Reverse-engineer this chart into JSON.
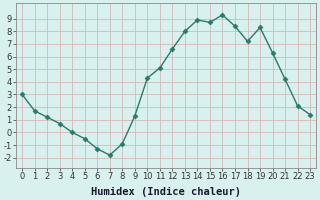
{
  "x": [
    0,
    1,
    2,
    3,
    4,
    5,
    6,
    7,
    8,
    9,
    10,
    11,
    12,
    13,
    14,
    15,
    16,
    17,
    18,
    19,
    20,
    21,
    22,
    23
  ],
  "y": [
    3,
    1.7,
    1.2,
    0.7,
    0.0,
    -0.5,
    -1.3,
    -1.8,
    -0.9,
    1.3,
    4.3,
    5.1,
    6.6,
    8.0,
    8.9,
    8.7,
    9.3,
    8.4,
    7.2,
    8.3,
    6.3,
    4.2,
    2.1,
    1.4
  ],
  "line_color": "#2a7a6a",
  "marker": "D",
  "marker_size": 2.5,
  "bg_color": "#d8f0ee",
  "grid_color": "#d4b8b8",
  "xlabel": "Humidex (Indice chaleur)",
  "xlim": [
    -0.5,
    23.5
  ],
  "ylim": [
    -2.8,
    10.2
  ],
  "xticks": [
    0,
    1,
    2,
    3,
    4,
    5,
    6,
    7,
    8,
    9,
    10,
    11,
    12,
    13,
    14,
    15,
    16,
    17,
    18,
    19,
    20,
    21,
    22,
    23
  ],
  "yticks": [
    -2,
    -1,
    0,
    1,
    2,
    3,
    4,
    5,
    6,
    7,
    8,
    9
  ],
  "tick_fontsize": 6,
  "xlabel_fontsize": 7.5,
  "spine_color": "#888888"
}
